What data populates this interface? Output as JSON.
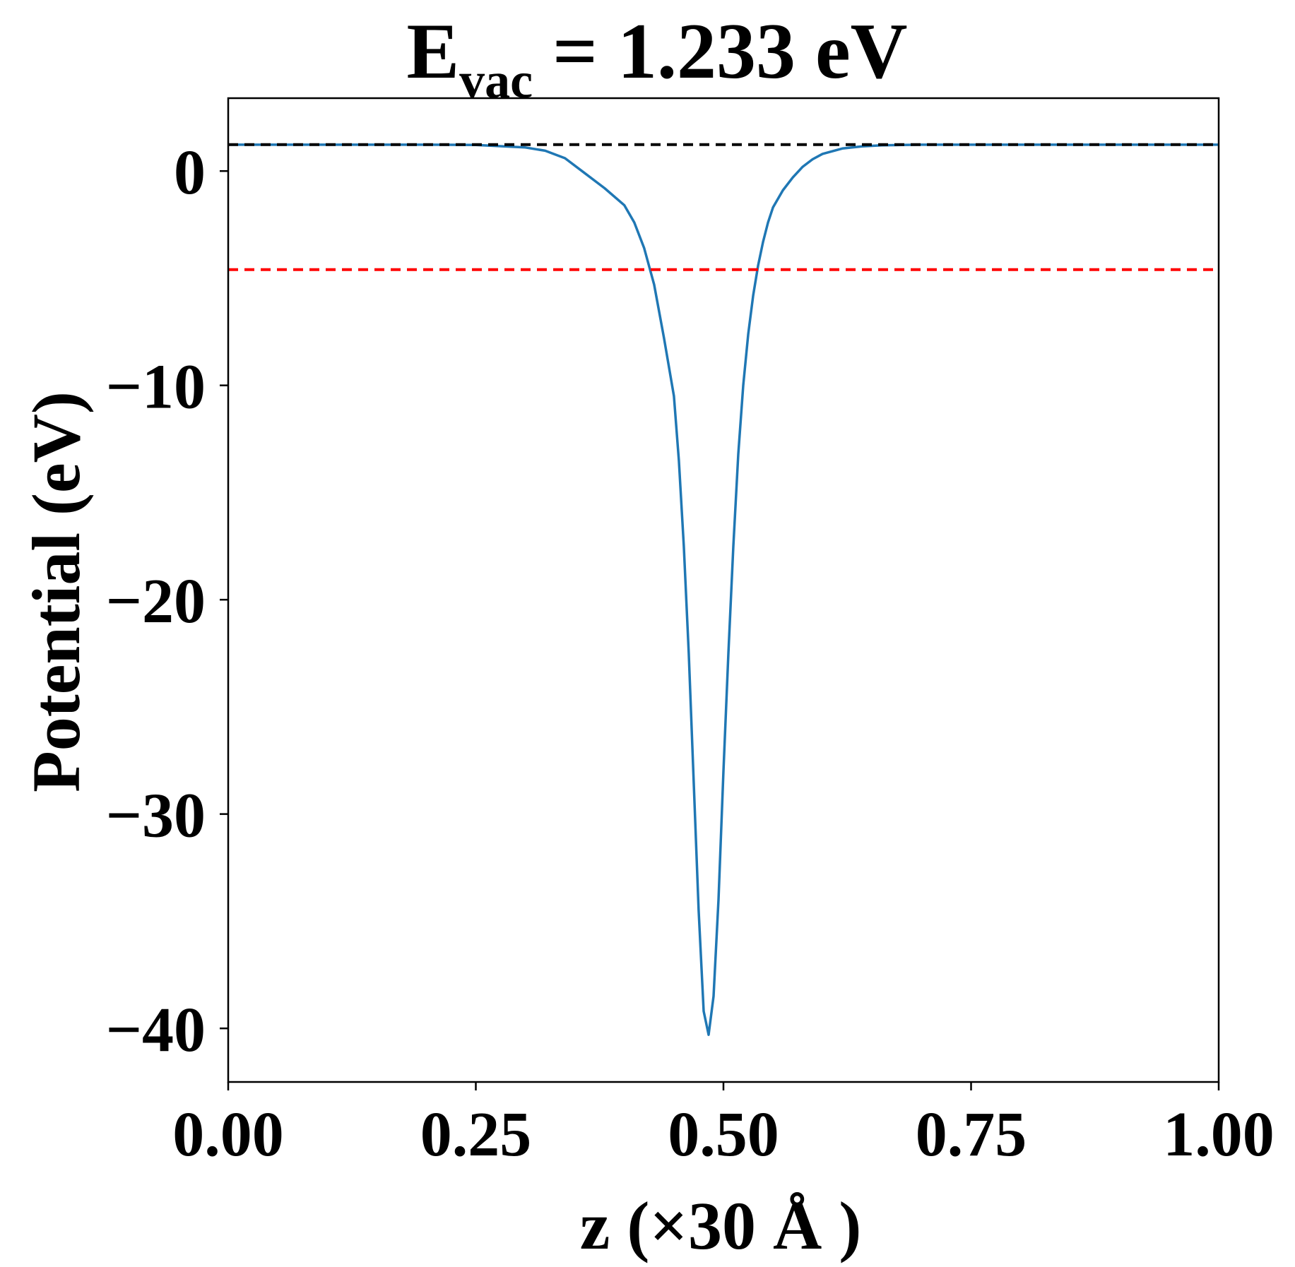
{
  "chart_data": {
    "type": "line",
    "title": {
      "symbol": "E",
      "subscript": "vac",
      "rest": " = 1.233 eV"
    },
    "xlabel": "z (×30 Å )",
    "ylabel": "Potential (eV)",
    "xlim": [
      0.0,
      1.0
    ],
    "ylim": [
      -42.5,
      3.4
    ],
    "xticks": [
      0.0,
      0.25,
      0.5,
      0.75,
      1.0
    ],
    "xtick_labels": [
      "0.00",
      "0.25",
      "0.50",
      "0.75",
      "1.00"
    ],
    "yticks": [
      0,
      -10,
      -20,
      -30,
      -40
    ],
    "ytick_labels": [
      "0",
      "−10",
      "−20",
      "−30",
      "−40"
    ],
    "grid": false,
    "series": [
      {
        "color": "#1f77b4",
        "style": "solid",
        "x": [
          0.0,
          0.05,
          0.1,
          0.15,
          0.2,
          0.25,
          0.3,
          0.32,
          0.34,
          0.36,
          0.38,
          0.4,
          0.41,
          0.42,
          0.43,
          0.44,
          0.45,
          0.455,
          0.46,
          0.465,
          0.47,
          0.475,
          0.48,
          0.485,
          0.49,
          0.495,
          0.5,
          0.505,
          0.51,
          0.515,
          0.52,
          0.525,
          0.53,
          0.535,
          0.54,
          0.545,
          0.55,
          0.56,
          0.57,
          0.58,
          0.59,
          0.6,
          0.62,
          0.64,
          0.66,
          0.68,
          0.7,
          0.75,
          0.8,
          0.85,
          0.9,
          0.95,
          1.0
        ],
        "y": [
          1.23,
          1.23,
          1.23,
          1.23,
          1.23,
          1.22,
          1.1,
          0.95,
          0.6,
          -0.1,
          -0.8,
          -1.6,
          -2.4,
          -3.6,
          -5.3,
          -7.8,
          -10.5,
          -13.5,
          -17.5,
          -22.5,
          -28.5,
          -34.5,
          -39.2,
          -40.3,
          -38.5,
          -34.0,
          -28.0,
          -22.5,
          -17.5,
          -13.2,
          -10.0,
          -7.6,
          -5.8,
          -4.4,
          -3.3,
          -2.4,
          -1.7,
          -0.9,
          -0.3,
          0.2,
          0.55,
          0.8,
          1.05,
          1.15,
          1.2,
          1.22,
          1.23,
          1.23,
          1.23,
          1.23,
          1.23,
          1.23,
          1.23
        ]
      },
      {
        "color": "#000000",
        "style": "dashed",
        "x": [
          0.0,
          1.0
        ],
        "y": [
          1.233,
          1.233
        ]
      },
      {
        "color": "#ff0000",
        "style": "dashed",
        "x": [
          0.0,
          1.0
        ],
        "y": [
          -4.6,
          -4.6
        ]
      }
    ]
  }
}
